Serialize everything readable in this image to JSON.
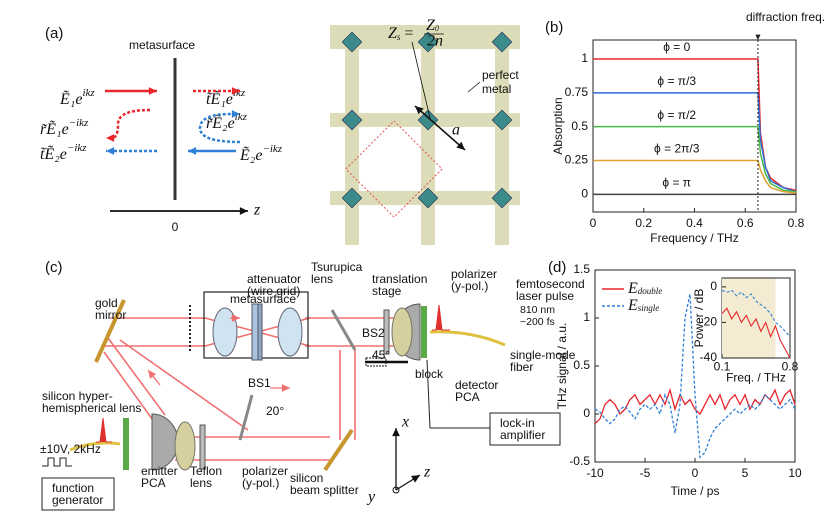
{
  "panels": {
    "a": {
      "label": "(a)",
      "metasurface": "metasurface",
      "fields": [
        {
          "main": "Ẽ₁e",
          "sup": "ikz"
        },
        {
          "main": "t̃Ẽ₁e",
          "sup": "ikz"
        },
        {
          "main": "r̃Ẽ₂e",
          "sup": "ikz"
        },
        {
          "main": "r̃Ẽ₁e",
          "sup": "−ikz"
        },
        {
          "main": "t̃Ẽ₂e",
          "sup": "−ikz"
        },
        {
          "main": "Ẽ₂e",
          "sup": "−ikz"
        }
      ],
      "z_axis": "z",
      "origin": "0",
      "impedance": {
        "z": "Z",
        "s": "s",
        "eq": "=",
        "z0": "Z",
        "zero": "0",
        "den": "2n"
      },
      "metal": [
        "perfect",
        "metal"
      ],
      "period": "a"
    },
    "c": {
      "label": "(c)",
      "labels": [
        [
          "attenuator",
          "(wire grid)"
        ],
        [
          "metasurface"
        ],
        [
          "Tsurupica",
          "lens"
        ],
        [
          "translation",
          "stage"
        ],
        [
          "BS2"
        ],
        [
          "45°"
        ],
        [
          "polarizer",
          "(y-pol.)"
        ],
        [
          "femtosecond",
          "laser pulse"
        ],
        [
          "810 nm",
          "~200 fs"
        ],
        [
          "single-mode",
          "fiber"
        ],
        [
          "gold",
          "mirror"
        ],
        [
          "silicon hyper-",
          "hemispherical lens"
        ],
        [
          "BS1"
        ],
        [
          "20°"
        ],
        [
          "block"
        ],
        [
          "detector",
          "PCA"
        ],
        [
          "lock-in",
          "amplifier"
        ],
        [
          "±10V, 2kHz"
        ],
        [
          "function",
          "generator"
        ],
        [
          "emitter",
          "PCA"
        ],
        [
          "Teflon",
          "lens"
        ],
        [
          "polarizer",
          "(y-pol.)"
        ],
        [
          "silicon",
          "beam splitter"
        ],
        [
          "x"
        ],
        [
          "z"
        ],
        [
          "y"
        ]
      ]
    }
  },
  "chart_data": [
    {
      "type": "line",
      "label": "(b)",
      "xlabel": "Frequency / THz",
      "ylabel": "Absorption",
      "annotation": {
        "text": "diffraction freq.",
        "x": 0.65
      },
      "x": [
        0,
        0.65,
        0.66,
        0.68,
        0.7,
        0.75,
        0.8
      ],
      "series": [
        {
          "name": "ϕ = 0",
          "color": "#e8262b",
          "values": [
            1,
            1,
            0.45,
            0.2,
            0.12,
            0.05,
            0.03
          ]
        },
        {
          "name": "ϕ = π/3",
          "color": "#2f6fd6",
          "values": [
            0.75,
            0.75,
            0.4,
            0.2,
            0.1,
            0.05,
            0.02
          ]
        },
        {
          "name": "ϕ = π/2",
          "color": "#4cb84a",
          "values": [
            0.5,
            0.5,
            0.3,
            0.15,
            0.08,
            0.03,
            0.02
          ]
        },
        {
          "name": "ϕ = 2π/3",
          "color": "#e0a030",
          "values": [
            0.25,
            0.25,
            0.18,
            0.1,
            0.05,
            0.02,
            0.01
          ]
        },
        {
          "name": "ϕ = π",
          "color": "#444444",
          "values": [
            0,
            0,
            0,
            0,
            0,
            0,
            0
          ]
        }
      ],
      "xlim": [
        0,
        0.8
      ],
      "xticks": [
        0,
        0.2,
        0.4,
        0.6,
        0.8
      ],
      "ylim": [
        -0.13,
        1.14
      ],
      "yticks": [
        0,
        0.25,
        0.5,
        0.75,
        1
      ]
    },
    {
      "type": "line",
      "label": "(d)",
      "xlabel": "Time / ps",
      "ylabel": "THz signal / a.u.",
      "x": [
        -10,
        -9.5,
        -9,
        -8.5,
        -8,
        -7.5,
        -7,
        -6.5,
        -6,
        -5.5,
        -5,
        -4.5,
        -4,
        -3.5,
        -3,
        -2.5,
        -2,
        -1.5,
        -1,
        -0.5,
        0,
        0.5,
        1,
        1.5,
        2,
        2.5,
        3,
        3.5,
        4,
        4.5,
        5,
        5.5,
        6,
        6.5,
        7,
        7.5,
        8,
        8.5,
        9,
        9.5,
        10
      ],
      "series": [
        {
          "name": "E",
          "subscript": "double",
          "color": "#e8262b",
          "dash": false,
          "values": [
            -0.1,
            -0.05,
            0.1,
            0.15,
            0.1,
            0,
            0.05,
            0.15,
            0.2,
            0.1,
            0.15,
            0.2,
            0.1,
            0.2,
            0.1,
            0.25,
            0.05,
            0.2,
            0.1,
            0.15,
            0.05,
            0,
            0.1,
            0.2,
            0.1,
            0.2,
            0.05,
            0.15,
            0.2,
            0.1,
            0.2,
            0.05,
            0.15,
            0.1,
            0.2,
            0.15,
            0.25,
            0.1,
            0.2,
            0.25,
            0.1
          ]
        },
        {
          "name": "E",
          "subscript": "single",
          "color": "#2f7fd6",
          "dash": true,
          "values": [
            0.05,
            0.02,
            -0.05,
            -0.1,
            -0.05,
            0.05,
            0.08,
            0.02,
            -0.05,
            0.05,
            0.1,
            0.05,
            0.1,
            0,
            0.2,
            0.1,
            -0.2,
            0.1,
            1,
            1.25,
            0.2,
            -0.45,
            -0.4,
            -0.25,
            -0.15,
            -0.1,
            -0.05,
            0,
            0.05,
            0,
            0.05,
            0.1,
            0.05,
            0.1,
            0.2,
            0.15,
            0.1,
            0.05,
            0.1,
            0.15,
            0.05
          ]
        }
      ],
      "xlim": [
        -10,
        10
      ],
      "xticks": [
        -10,
        -5,
        0,
        5,
        10
      ],
      "ylim": [
        -0.5,
        1.5
      ],
      "yticks": [
        -0.5,
        0,
        0.5,
        1,
        1.5
      ],
      "inset": {
        "xlabel": "Freq. / THz",
        "ylabel": "Power / dB",
        "shade": [
          0.1,
          0.65
        ],
        "x": [
          0.1,
          0.15,
          0.2,
          0.25,
          0.3,
          0.35,
          0.4,
          0.45,
          0.5,
          0.55,
          0.6,
          0.65,
          0.7,
          0.75,
          0.8
        ],
        "series": [
          {
            "color": "#e8262b",
            "dash": false,
            "values": [
              -15,
              -12,
              -18,
              -14,
              -20,
              -16,
              -22,
              -18,
              -25,
              -20,
              -28,
              -22,
              -30,
              -35,
              -40
            ]
          },
          {
            "color": "#2f7fd6",
            "dash": true,
            "values": [
              -2,
              -3,
              -2,
              -5,
              -3,
              -6,
              -4,
              -8,
              -10,
              -12,
              -15,
              -20,
              -22,
              -25,
              -28
            ]
          }
        ],
        "xlim": [
          0.1,
          0.8
        ],
        "xticks": [
          0.1,
          0.8
        ],
        "ylim": [
          -40,
          5
        ],
        "yticks": [
          -40,
          -20,
          0
        ]
      }
    }
  ]
}
